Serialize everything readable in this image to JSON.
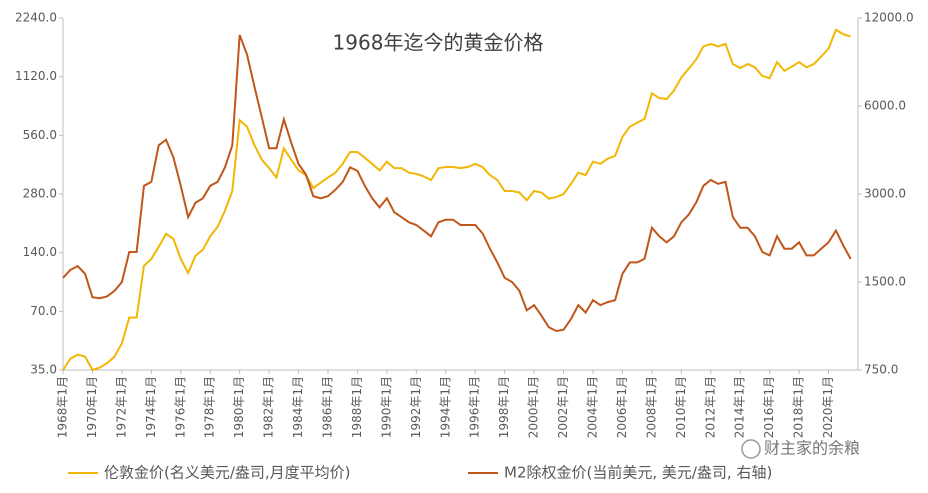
{
  "chart_data": {
    "type": "line",
    "title": "1968年迄今的黄金价格",
    "categories": [
      "1968年1月",
      null,
      null,
      null,
      "1970年1月",
      null,
      null,
      null,
      "1972年1月",
      null,
      null,
      null,
      "1974年1月",
      null,
      null,
      null,
      "1976年1月",
      null,
      null,
      null,
      "1978年1月",
      null,
      null,
      null,
      "1980年1月",
      null,
      null,
      null,
      "1982年1月",
      null,
      null,
      null,
      "1984年1月",
      null,
      null,
      null,
      "1986年1月",
      null,
      null,
      null,
      "1988年1月",
      null,
      null,
      null,
      "1990年1月",
      null,
      null,
      null,
      "1992年1月",
      null,
      null,
      null,
      "1994年1月",
      null,
      null,
      null,
      "1996年1月",
      null,
      null,
      null,
      "1998年1月",
      null,
      null,
      null,
      "2000年1月",
      null,
      null,
      null,
      "2002年1月",
      null,
      null,
      null,
      "2004年1月",
      null,
      null,
      null,
      "2006年1月",
      null,
      null,
      null,
      "2008年1月",
      null,
      null,
      null,
      "2010年1月",
      null,
      null,
      null,
      "2012年1月",
      null,
      null,
      null,
      "2014年1月",
      null,
      null,
      null,
      "2016年1月",
      null,
      null,
      null,
      "2018年1月",
      null,
      null,
      null,
      "2020年1月",
      null,
      null,
      null
    ],
    "series": [
      {
        "name": "伦敦金价(名义美元/盎司,月度平均价)",
        "color": "#f2b705",
        "values": [
          35,
          40,
          42,
          41,
          35,
          36,
          38,
          41,
          48,
          65,
          65,
          120,
          130,
          150,
          175,
          165,
          130,
          110,
          135,
          145,
          170,
          190,
          230,
          290,
          670,
          620,
          500,
          420,
          380,
          340,
          480,
          420,
          370,
          350,
          300,
          320,
          340,
          360,
          400,
          460,
          460,
          430,
          400,
          370,
          410,
          380,
          380,
          360,
          355,
          345,
          330,
          380,
          385,
          385,
          380,
          385,
          400,
          385,
          350,
          330,
          290,
          290,
          285,
          260,
          290,
          285,
          265,
          270,
          280,
          315,
          360,
          350,
          410,
          400,
          425,
          440,
          550,
          620,
          650,
          680,
          920,
          870,
          860,
          950,
          1110,
          1230,
          1370,
          1600,
          1650,
          1600,
          1650,
          1300,
          1240,
          1300,
          1250,
          1130,
          1100,
          1330,
          1200,
          1260,
          1330,
          1250,
          1300,
          1420,
          1560,
          1950,
          1850,
          1800
        ]
      },
      {
        "name": "M2除权金价(当前美元, 美元/盎司, 右轴)",
        "color": "#c0561a",
        "axis": "y2",
        "values": [
          1550,
          1650,
          1700,
          1600,
          1330,
          1320,
          1340,
          1400,
          1500,
          1900,
          1900,
          3200,
          3300,
          4400,
          4600,
          4000,
          3200,
          2500,
          2800,
          2900,
          3200,
          3300,
          3700,
          4400,
          10500,
          9000,
          7000,
          5500,
          4300,
          4300,
          5400,
          4500,
          3800,
          3500,
          2950,
          2900,
          2950,
          3100,
          3300,
          3700,
          3600,
          3200,
          2900,
          2700,
          2900,
          2600,
          2500,
          2400,
          2350,
          2250,
          2150,
          2400,
          2450,
          2450,
          2350,
          2350,
          2350,
          2200,
          1950,
          1750,
          1550,
          1500,
          1400,
          1200,
          1250,
          1150,
          1050,
          1020,
          1030,
          1120,
          1250,
          1180,
          1300,
          1250,
          1280,
          1300,
          1600,
          1750,
          1750,
          1800,
          2300,
          2150,
          2050,
          2150,
          2400,
          2550,
          2800,
          3200,
          3350,
          3250,
          3300,
          2500,
          2300,
          2300,
          2150,
          1900,
          1850,
          2150,
          1950,
          1950,
          2050,
          1850,
          1850,
          1950,
          2050,
          2250,
          2000,
          1800
        ]
      }
    ],
    "log_scale": true,
    "ylim": [
      35,
      2240
    ],
    "yticks": [
      {
        "value": 35,
        "label": "35.0"
      },
      {
        "value": 70,
        "label": "70.0"
      },
      {
        "value": 140,
        "label": "140.0"
      },
      {
        "value": 280,
        "label": "280.0"
      },
      {
        "value": 560,
        "label": "560.0"
      },
      {
        "value": 1120,
        "label": "1120.0"
      },
      {
        "value": 2240,
        "label": "2240.0"
      }
    ],
    "y2lim": [
      750,
      12000
    ],
    "y2ticks": [
      {
        "value": 750,
        "label": "750.0"
      },
      {
        "value": 1500,
        "label": "1500.0"
      },
      {
        "value": 3000,
        "label": "3000.0"
      },
      {
        "value": 6000,
        "label": "6000.0"
      },
      {
        "value": 12000,
        "label": "12000.0"
      }
    ],
    "grid": false,
    "legend": "bottom",
    "watermark": "财主家的余粮"
  }
}
